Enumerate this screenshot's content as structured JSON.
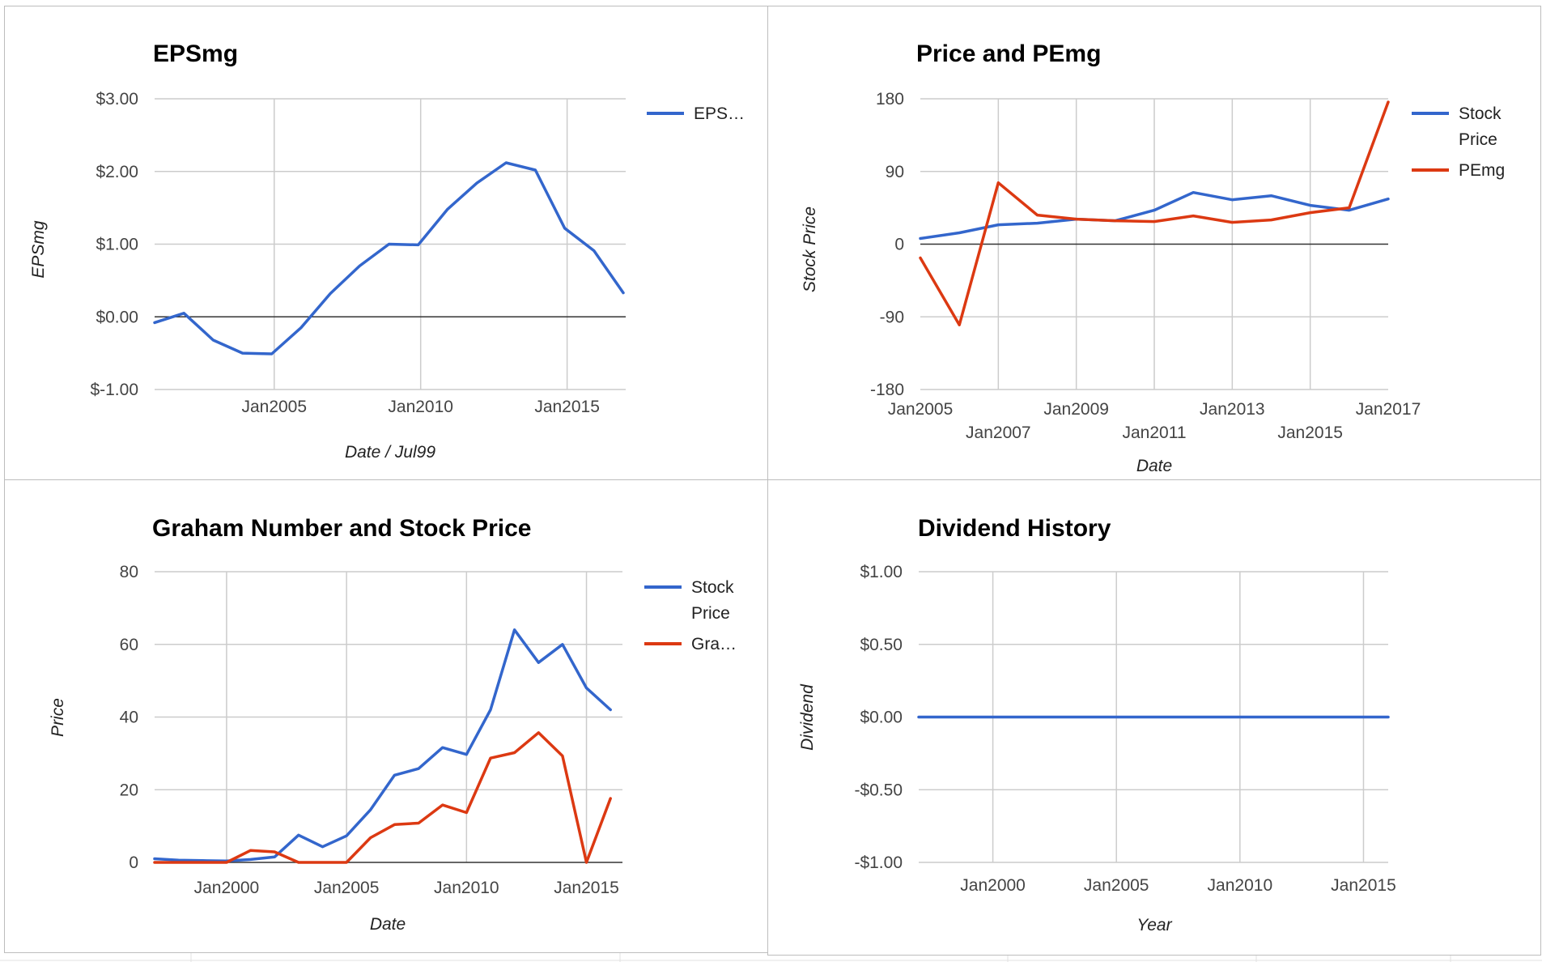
{
  "colors": {
    "blue": "#3366cc",
    "red": "#dc3912",
    "grid": "#cccccc",
    "zero": "#333333"
  },
  "chart_data": [
    {
      "type": "line",
      "title": "EPSmg",
      "xlabel": "Date / Jul99",
      "ylabel": "EPSmg",
      "ylim": [
        -1,
        3
      ],
      "xlim": [
        "2000-12",
        "2017-01"
      ],
      "yticks": [
        {
          "v": 3,
          "label": "$3.00"
        },
        {
          "v": 2,
          "label": "$2.00"
        },
        {
          "v": 1,
          "label": "$1.00"
        },
        {
          "v": 0,
          "label": "$0.00"
        },
        {
          "v": -1,
          "label": "$-1.00"
        }
      ],
      "xticks": [
        {
          "v": "2005-01",
          "label": "Jan2005"
        },
        {
          "v": "2010-01",
          "label": "Jan2010"
        },
        {
          "v": "2015-01",
          "label": "Jan2015"
        }
      ],
      "grid": true,
      "legend_position": "right",
      "series": [
        {
          "name": "EPS…",
          "color": "blue",
          "x": [
            "2000-12",
            "2001-12",
            "2002-12",
            "2003-12",
            "2004-12",
            "2005-12",
            "2006-12",
            "2007-12",
            "2008-12",
            "2009-12",
            "2010-12",
            "2011-12",
            "2012-12",
            "2013-12",
            "2014-12",
            "2015-12",
            "2016-12"
          ],
          "y": [
            -0.08,
            0.05,
            -0.32,
            -0.5,
            -0.51,
            -0.15,
            0.32,
            0.7,
            1.0,
            0.99,
            1.48,
            1.84,
            2.12,
            2.02,
            1.22,
            0.91,
            0.33
          ]
        }
      ]
    },
    {
      "type": "line",
      "title": "Price and PEmg",
      "xlabel": "Date",
      "ylabel": "Stock Price",
      "ylim": [
        -180,
        180
      ],
      "xlim": [
        "2005-01",
        "2017-01"
      ],
      "yticks": [
        {
          "v": 180,
          "label": "180"
        },
        {
          "v": 90,
          "label": "90"
        },
        {
          "v": 0,
          "label": "0"
        },
        {
          "v": -90,
          "label": "-90"
        },
        {
          "v": -180,
          "label": "-180"
        }
      ],
      "xticks": [
        {
          "v": "2005-01",
          "label": "Jan2005",
          "row": 1
        },
        {
          "v": "2007-01",
          "label": "Jan2007",
          "row": 2
        },
        {
          "v": "2009-01",
          "label": "Jan2009",
          "row": 1
        },
        {
          "v": "2011-01",
          "label": "Jan2011",
          "row": 2
        },
        {
          "v": "2013-01",
          "label": "Jan2013",
          "row": 1
        },
        {
          "v": "2015-01",
          "label": "Jan2015",
          "row": 2
        },
        {
          "v": "2017-01",
          "label": "Jan2017",
          "row": 1
        }
      ],
      "grid": true,
      "legend_position": "right",
      "series": [
        {
          "name": [
            "Stock",
            "Price"
          ],
          "color": "blue",
          "x": [
            "2005-01",
            "2006-01",
            "2007-01",
            "2008-01",
            "2009-01",
            "2010-01",
            "2011-01",
            "2012-01",
            "2013-01",
            "2014-01",
            "2015-01",
            "2016-01",
            "2017-01"
          ],
          "y": [
            7,
            14,
            24,
            26,
            31,
            29,
            42,
            64,
            55,
            60,
            48,
            42,
            56
          ]
        },
        {
          "name": [
            "PEmg"
          ],
          "color": "red",
          "x": [
            "2005-01",
            "2006-01",
            "2007-01",
            "2008-01",
            "2009-01",
            "2010-01",
            "2011-01",
            "2012-01",
            "2013-01",
            "2014-01",
            "2015-01",
            "2016-01",
            "2017-01"
          ],
          "y": [
            -17,
            -100,
            76,
            36,
            31,
            29,
            28,
            35,
            27,
            30,
            39,
            45,
            176
          ]
        }
      ]
    },
    {
      "type": "line",
      "title": "Graham Number and Stock Price",
      "xlabel": "Date",
      "ylabel": "Price",
      "ylim": [
        0,
        80
      ],
      "xlim": [
        "1997-01",
        "2016-07"
      ],
      "yticks": [
        {
          "v": 80,
          "label": "80"
        },
        {
          "v": 60,
          "label": "60"
        },
        {
          "v": 40,
          "label": "40"
        },
        {
          "v": 20,
          "label": "20"
        },
        {
          "v": 0,
          "label": "0"
        }
      ],
      "xticks": [
        {
          "v": "2000-01",
          "label": "Jan2000"
        },
        {
          "v": "2005-01",
          "label": "Jan2005"
        },
        {
          "v": "2010-01",
          "label": "Jan2010"
        },
        {
          "v": "2015-01",
          "label": "Jan2015"
        }
      ],
      "grid": true,
      "legend_position": "right",
      "series": [
        {
          "name": [
            "Stock",
            "Price"
          ],
          "color": "blue",
          "x": [
            "1997-01",
            "1998-01",
            "1999-01",
            "2000-01",
            "2001-01",
            "2002-01",
            "2003-01",
            "2004-01",
            "2005-01",
            "2006-01",
            "2007-01",
            "2008-01",
            "2009-01",
            "2010-01",
            "2011-01",
            "2012-01",
            "2013-01",
            "2014-01",
            "2015-01",
            "2016-01"
          ],
          "y": [
            1,
            0.6,
            0.5,
            0.4,
            0.8,
            1.5,
            7.5,
            4.3,
            7.3,
            14.5,
            24,
            25.8,
            31.6,
            29.7,
            42,
            64,
            55,
            60,
            48,
            42
          ]
        },
        {
          "name": [
            "Gra…"
          ],
          "color": "red",
          "x": [
            "1997-01",
            "1998-01",
            "1999-01",
            "2000-01",
            "2001-01",
            "2002-01",
            "2003-01",
            "2004-01",
            "2005-01",
            "2006-01",
            "2007-01",
            "2008-01",
            "2009-01",
            "2010-01",
            "2011-01",
            "2012-01",
            "2013-01",
            "2014-01",
            "2015-01",
            "2016-01"
          ],
          "y": [
            0,
            0,
            0,
            0,
            3.3,
            2.9,
            0,
            0,
            0,
            6.8,
            10.4,
            10.8,
            15.8,
            13.7,
            28.7,
            30.2,
            35.7,
            29.3,
            0,
            17.6
          ]
        }
      ]
    },
    {
      "type": "line",
      "title": "Dividend History",
      "xlabel": "Year",
      "ylabel": "Dividend",
      "ylim": [
        -1,
        1
      ],
      "xlim": [
        "1997-01",
        "2016-01"
      ],
      "yticks": [
        {
          "v": 1,
          "label": "$1.00"
        },
        {
          "v": 0.5,
          "label": "$0.50"
        },
        {
          "v": 0,
          "label": "$0.00"
        },
        {
          "v": -0.5,
          "label": "-$0.50"
        },
        {
          "v": -1,
          "label": "-$1.00"
        }
      ],
      "xticks": [
        {
          "v": "2000-01",
          "label": "Jan2000"
        },
        {
          "v": "2005-01",
          "label": "Jan2005"
        },
        {
          "v": "2010-01",
          "label": "Jan2010"
        },
        {
          "v": "2015-01",
          "label": "Jan2015"
        }
      ],
      "grid": true,
      "legend_position": "none",
      "series": [
        {
          "color": "blue",
          "x": [
            "1997-01",
            "1998-01",
            "1999-01",
            "2000-01",
            "2001-01",
            "2002-01",
            "2003-01",
            "2004-01",
            "2005-01",
            "2006-01",
            "2007-01",
            "2008-01",
            "2009-01",
            "2010-01",
            "2011-01",
            "2012-01",
            "2013-01",
            "2014-01",
            "2015-01",
            "2016-01"
          ],
          "y": [
            0,
            0,
            0,
            0,
            0,
            0,
            0,
            0,
            0,
            0,
            0,
            0,
            0,
            0,
            0,
            0,
            0,
            0,
            0,
            0
          ]
        }
      ]
    }
  ]
}
